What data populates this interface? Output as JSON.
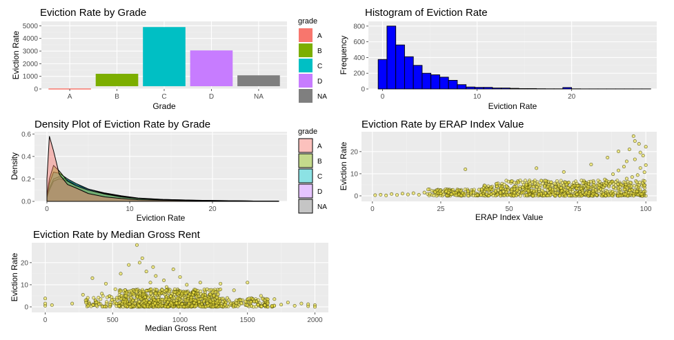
{
  "colors": {
    "panel_bg": "#ebebeb",
    "grid_major": "#ffffff",
    "grid_minor": "#f2f2f2",
    "hist_fill": "#0000ff",
    "scatter_fill": "#f0e442",
    "grade_palette": [
      "#f8766d",
      "#7cae00",
      "#00bfc4",
      "#c77cff",
      "#7f7f7f"
    ]
  },
  "chart_data": [
    {
      "id": "bar",
      "type": "bar",
      "title": "Eviction Rate by Grade",
      "xlabel": "Grade",
      "ylabel": "Eviction Rate",
      "categories": [
        "A",
        "B",
        "C",
        "D",
        "NA"
      ],
      "values": [
        40,
        1200,
        4900,
        3050,
        1080
      ],
      "ylim": [
        0,
        5000
      ],
      "yticks": [
        0,
        1000,
        2000,
        3000,
        4000,
        5000
      ],
      "legend": {
        "title": "grade",
        "entries": [
          "A",
          "B",
          "C",
          "D",
          "NA"
        ],
        "position": "right"
      }
    },
    {
      "id": "hist",
      "type": "bar",
      "title": "Histogram of Eviction Rate",
      "xlabel": "Eviction Rate",
      "ylabel": "Frequency",
      "bin_width": 0.93,
      "bin_start": -0.465,
      "counts": [
        375,
        800,
        560,
        410,
        300,
        200,
        180,
        150,
        110,
        55,
        25,
        20,
        20,
        12,
        12,
        8,
        5,
        5,
        3,
        2,
        2,
        18,
        2,
        1,
        1,
        1,
        1,
        1,
        1,
        1,
        1
      ],
      "xlim": [
        -1.5,
        29
      ],
      "ylim": [
        0,
        860
      ],
      "xticks": [
        0,
        10,
        20
      ],
      "yticks": [
        0,
        200,
        400,
        600,
        800
      ]
    },
    {
      "id": "density",
      "type": "area",
      "title": "Density Plot of Eviction Rate by Grade",
      "xlabel": "Eviction Rate",
      "ylabel": "Density",
      "xlim": [
        -1.5,
        29
      ],
      "ylim": [
        0,
        0.62
      ],
      "xticks": [
        0,
        10,
        20
      ],
      "yticks": [
        0.0,
        0.2,
        0.4,
        0.6
      ],
      "x": [
        0,
        0.3,
        0.8,
        1.5,
        2.5,
        3.5,
        5,
        7,
        9,
        11,
        14,
        18,
        22,
        25,
        28
      ],
      "series": [
        {
          "name": "A",
          "values": [
            0.2,
            0.58,
            0.45,
            0.24,
            0.15,
            0.12,
            0.07,
            0.04,
            0.025,
            0.015,
            0.01,
            0.006,
            0.004,
            0.002,
            0.001
          ]
        },
        {
          "name": "B",
          "values": [
            0.05,
            0.2,
            0.32,
            0.27,
            0.18,
            0.14,
            0.1,
            0.065,
            0.04,
            0.025,
            0.015,
            0.008,
            0.005,
            0.003,
            0.001
          ]
        },
        {
          "name": "C",
          "values": [
            0.04,
            0.16,
            0.26,
            0.25,
            0.2,
            0.16,
            0.11,
            0.07,
            0.045,
            0.028,
            0.017,
            0.01,
            0.006,
            0.003,
            0.001
          ]
        },
        {
          "name": "D",
          "values": [
            0.03,
            0.1,
            0.18,
            0.2,
            0.18,
            0.15,
            0.11,
            0.075,
            0.05,
            0.03,
            0.018,
            0.01,
            0.006,
            0.003,
            0.001
          ]
        },
        {
          "name": "NA",
          "values": [
            0.04,
            0.12,
            0.2,
            0.22,
            0.19,
            0.15,
            0.1,
            0.065,
            0.04,
            0.025,
            0.015,
            0.008,
            0.005,
            0.003,
            0.001
          ]
        }
      ],
      "legend": {
        "title": "grade",
        "entries": [
          "A",
          "B",
          "C",
          "D",
          "NA"
        ],
        "position": "right"
      }
    },
    {
      "id": "erap",
      "type": "scatter",
      "title": "Eviction Rate by ERAP Index Value",
      "xlabel": "ERAP Index Value",
      "ylabel": "Eviction Rate",
      "xlim": [
        -4,
        104
      ],
      "ylim": [
        -2.5,
        29
      ],
      "xticks": [
        0,
        25,
        50,
        75,
        100
      ],
      "yticks": [
        0,
        10,
        20
      ],
      "points": [
        [
          1,
          0.3
        ],
        [
          3,
          0.5
        ],
        [
          5,
          0.2
        ],
        [
          7,
          0.8
        ],
        [
          9,
          0.4
        ],
        [
          11,
          1.0
        ],
        [
          13,
          0.6
        ],
        [
          15,
          1.2
        ],
        [
          17,
          0.5
        ],
        [
          19,
          1.5
        ],
        [
          21,
          0.9
        ],
        [
          23,
          1.8
        ],
        [
          25,
          1.1
        ],
        [
          27,
          2.0
        ],
        [
          29,
          0.7
        ],
        [
          31,
          2.4
        ],
        [
          33,
          1.3
        ],
        [
          34,
          12.0
        ],
        [
          35,
          2.1
        ],
        [
          37,
          1.5
        ],
        [
          39,
          2.8
        ],
        [
          41,
          1.9
        ],
        [
          43,
          3.1
        ],
        [
          45,
          2.2
        ],
        [
          47,
          3.4
        ],
        [
          49,
          1.7
        ],
        [
          51,
          3.0
        ],
        [
          53,
          2.5
        ],
        [
          55,
          3.8
        ],
        [
          57,
          2.3
        ],
        [
          59,
          4.1
        ],
        [
          61,
          2.9
        ],
        [
          63,
          4.4
        ],
        [
          65,
          3.2
        ],
        [
          67,
          4.0
        ],
        [
          69,
          3.6
        ],
        [
          71,
          5.2
        ],
        [
          73,
          3.9
        ],
        [
          75,
          4.6
        ],
        [
          77,
          5.8
        ],
        [
          79,
          4.2
        ],
        [
          81,
          6.1
        ],
        [
          83,
          4.9
        ],
        [
          85,
          7.4
        ],
        [
          87,
          5.5
        ],
        [
          88,
          9.8
        ],
        [
          89,
          6.3
        ],
        [
          90,
          11.5
        ],
        [
          91,
          5.1
        ],
        [
          92,
          13.2
        ],
        [
          93,
          7.8
        ],
        [
          94,
          21.0
        ],
        [
          95,
          8.5
        ],
        [
          95.5,
          27.0
        ],
        [
          96,
          16.5
        ],
        [
          97,
          9.4
        ],
        [
          97.5,
          23.5
        ],
        [
          98,
          12.6
        ],
        [
          99,
          18.2
        ],
        [
          99.5,
          10.7
        ],
        [
          60,
          12.5
        ],
        [
          70,
          10.8
        ],
        [
          80,
          14.2
        ],
        [
          86,
          17.3
        ],
        [
          90,
          20.1
        ],
        [
          93,
          15.6
        ],
        [
          96,
          24.8
        ],
        [
          98,
          19.6
        ],
        [
          100,
          22.2
        ],
        [
          100,
          13.9
        ]
      ],
      "dense_band": [
        {
          "x_from": 40,
          "x_to": 100,
          "y_max": 7,
          "n": 700
        },
        {
          "x_from": 20,
          "x_to": 40,
          "y_max": 3,
          "n": 120
        }
      ]
    },
    {
      "id": "rent",
      "type": "scatter",
      "title": "Eviction Rate by Median Gross Rent",
      "xlabel": "Median Gross Rent",
      "ylabel": "Eviction Rate",
      "xlim": [
        -100,
        2100
      ],
      "ylim": [
        -2.5,
        29
      ],
      "xticks": [
        0,
        500,
        1000,
        1500,
        2000
      ],
      "yticks": [
        0,
        10,
        20
      ],
      "points": [
        [
          0,
          0.5
        ],
        [
          0,
          3.8
        ],
        [
          0,
          1.5
        ],
        [
          50,
          0.8
        ],
        [
          200,
          1.5
        ],
        [
          280,
          5.5
        ],
        [
          300,
          3.0
        ],
        [
          320,
          0.5
        ],
        [
          350,
          13.0
        ],
        [
          380,
          2.0
        ],
        [
          420,
          6.0
        ],
        [
          450,
          10.5
        ],
        [
          480,
          1.0
        ],
        [
          520,
          8.0
        ],
        [
          560,
          15.0
        ],
        [
          600,
          5.0
        ],
        [
          620,
          19.0
        ],
        [
          650,
          3.0
        ],
        [
          680,
          28.0
        ],
        [
          700,
          20.0
        ],
        [
          720,
          22.0
        ],
        [
          750,
          16.0
        ],
        [
          780,
          11.0
        ],
        [
          800,
          18.0
        ],
        [
          820,
          14.0
        ],
        [
          850,
          7.0
        ],
        [
          880,
          12.0
        ],
        [
          900,
          9.0
        ],
        [
          950,
          17.0
        ],
        [
          980,
          4.0
        ],
        [
          1000,
          13.5
        ],
        [
          1050,
          10.0
        ],
        [
          1100,
          6.5
        ],
        [
          1150,
          11.0
        ],
        [
          1200,
          8.0
        ],
        [
          1250,
          5.0
        ],
        [
          1300,
          10.5
        ],
        [
          1350,
          4.0
        ],
        [
          1400,
          7.5
        ],
        [
          1450,
          3.0
        ],
        [
          1500,
          11.0
        ],
        [
          1550,
          2.5
        ],
        [
          1600,
          5.0
        ],
        [
          1650,
          1.5
        ],
        [
          1700,
          3.5
        ],
        [
          1750,
          1.0
        ],
        [
          1800,
          2.0
        ],
        [
          1850,
          0.5
        ],
        [
          1900,
          1.5
        ],
        [
          1950,
          0.3
        ],
        [
          2000,
          0.8
        ],
        [
          2000,
          0.0
        ],
        [
          1950,
          1.2
        ]
      ],
      "dense_band": [
        {
          "x_from": 550,
          "x_to": 1300,
          "y_max": 8,
          "n": 800
        },
        {
          "x_from": 1300,
          "x_to": 1700,
          "y_max": 4,
          "n": 120
        },
        {
          "x_from": 300,
          "x_to": 550,
          "y_max": 5,
          "n": 60
        }
      ]
    }
  ]
}
